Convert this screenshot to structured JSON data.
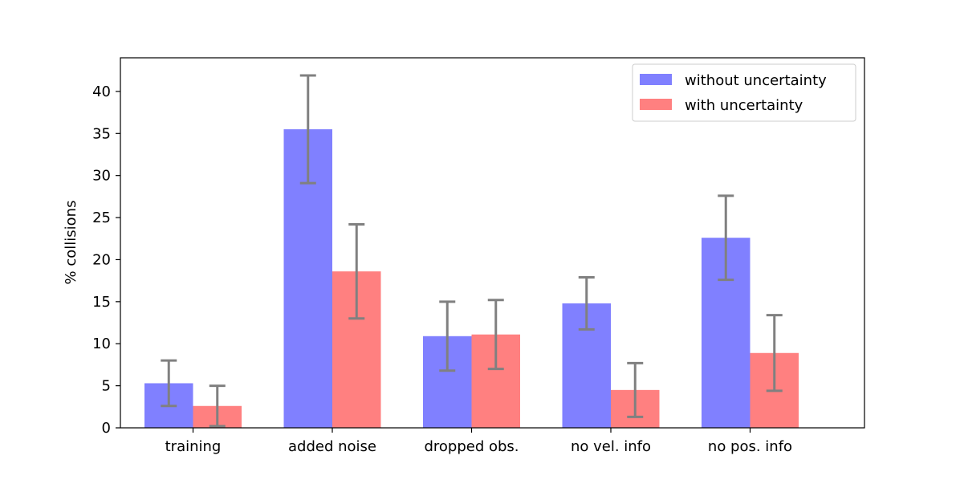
{
  "chart_data": {
    "type": "bar",
    "title": "",
    "xlabel": "",
    "ylabel": "% collisions",
    "ylim": [
      0,
      44
    ],
    "yticks": [
      0,
      5,
      10,
      15,
      20,
      25,
      30,
      35,
      40
    ],
    "categories": [
      "training",
      "added noise",
      "dropped obs.",
      "no vel. info",
      "no pos. info"
    ],
    "legend_position": "top-right",
    "series": [
      {
        "name": "without uncertainty",
        "color": "#8080ff",
        "values": [
          5.3,
          35.5,
          10.9,
          14.8,
          22.6
        ],
        "error": [
          2.7,
          6.4,
          4.1,
          3.1,
          5.0
        ]
      },
      {
        "name": "with uncertainty",
        "color": "#ff8080",
        "values": [
          2.6,
          18.6,
          11.1,
          4.5,
          8.9
        ],
        "error": [
          2.4,
          5.6,
          4.1,
          3.2,
          4.5
        ]
      }
    ],
    "error_bar_color": "#808080"
  }
}
